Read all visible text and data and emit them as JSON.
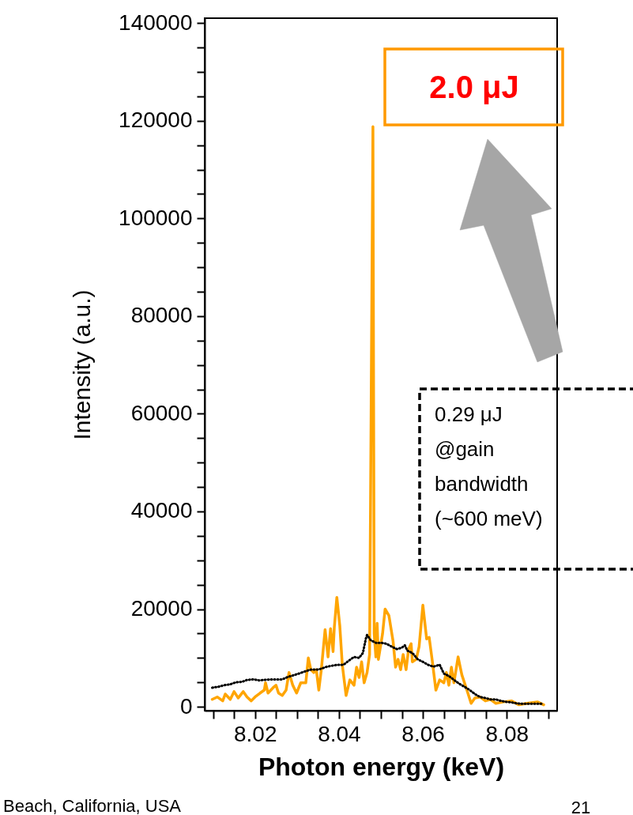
{
  "chart_data": {
    "type": "line",
    "xlabel": "Photon energy (keV)",
    "ylabel": "Intensity (a.u.)",
    "xlim": [
      8.008,
      8.092
    ],
    "ylim": [
      -800,
      141000
    ],
    "xticks": [
      {
        "value": 8.01,
        "label": null
      },
      {
        "value": 8.015,
        "label": null
      },
      8.02,
      {
        "value": 8.025,
        "label": null
      },
      {
        "value": 8.03,
        "label": null
      },
      {
        "value": 8.035,
        "label": null
      },
      8.04,
      {
        "value": 8.045,
        "label": null
      },
      {
        "value": 8.05,
        "label": null
      },
      {
        "value": 8.055,
        "label": null
      },
      8.06,
      {
        "value": 8.065,
        "label": null
      },
      {
        "value": 8.07,
        "label": null
      },
      {
        "value": 8.075,
        "label": null
      },
      8.08,
      {
        "value": 8.085,
        "label": null
      },
      {
        "value": 8.09,
        "label": null
      }
    ],
    "yticks": [
      0,
      {
        "value": 5000,
        "label": null
      },
      {
        "value": 10000,
        "label": null
      },
      {
        "value": 15000,
        "label": null
      },
      20000,
      {
        "value": 25000,
        "label": null
      },
      {
        "value": 30000,
        "label": null
      },
      {
        "value": 35000,
        "label": null
      },
      40000,
      {
        "value": 45000,
        "label": null
      },
      {
        "value": 50000,
        "label": null
      },
      {
        "value": 55000,
        "label": null
      },
      60000,
      {
        "value": 65000,
        "label": null
      },
      {
        "value": 70000,
        "label": null
      },
      {
        "value": 75000,
        "label": null
      },
      80000,
      {
        "value": 85000,
        "label": null
      },
      {
        "value": 90000,
        "label": null
      },
      {
        "value": 95000,
        "label": null
      },
      100000,
      {
        "value": 105000,
        "label": null
      },
      {
        "value": 110000,
        "label": null
      },
      {
        "value": 115000,
        "label": null
      },
      120000,
      {
        "value": 125000,
        "label": null
      },
      {
        "value": 130000,
        "label": null
      },
      {
        "value": 135000,
        "label": null
      },
      140000
    ],
    "grid": false,
    "marker": "none",
    "series": [
      {
        "color": "#000000",
        "line_style": "dotted",
        "x": [
          8.0098,
          8.0113,
          8.0126,
          8.0141,
          8.0154,
          8.0169,
          8.0181,
          8.0197,
          8.0209,
          8.0222,
          8.0237,
          8.0253,
          8.0265,
          8.0278,
          8.029,
          8.0305,
          8.0321,
          8.0333,
          8.0349,
          8.0358,
          8.0371,
          8.0383,
          8.0398,
          8.0411,
          8.0423,
          8.0436,
          8.0448,
          8.0457,
          8.0464,
          8.0467,
          8.0476,
          8.0488,
          8.0501,
          8.0513,
          8.0526,
          8.0538,
          8.055,
          8.0557,
          8.0563,
          8.0575,
          8.0588,
          8.06,
          8.0612,
          8.0625,
          8.064,
          8.065,
          8.0662,
          8.0674,
          8.0687,
          8.0699,
          8.0712,
          8.0724,
          8.0736,
          8.0749,
          8.0761,
          8.0774,
          8.0786,
          8.0798,
          8.0811,
          8.0823,
          8.0836,
          8.0854,
          8.0873,
          8.0888
        ],
        "values": [
          3900,
          4100,
          4400,
          4600,
          5000,
          5100,
          5500,
          5600,
          5400,
          5500,
          5600,
          5600,
          5600,
          6100,
          6400,
          6800,
          7300,
          7600,
          7600,
          7800,
          8200,
          8400,
          8600,
          8600,
          9400,
          10200,
          10000,
          11000,
          13900,
          14700,
          13600,
          13100,
          13100,
          12900,
          12300,
          11800,
          12100,
          12600,
          11500,
          11000,
          9700,
          9200,
          8600,
          8200,
          8600,
          6800,
          6300,
          5500,
          4700,
          4100,
          3400,
          2600,
          2000,
          1800,
          1500,
          1500,
          1200,
          1000,
          900,
          700,
          600,
          600,
          600,
          600
        ]
      },
      {
        "color": "#ffa500",
        "line_style": "solid",
        "x": [
          8.0098,
          8.011,
          8.0123,
          8.0129,
          8.0141,
          8.015,
          8.016,
          8.0172,
          8.0181,
          8.0191,
          8.02,
          8.0212,
          8.0222,
          8.0225,
          8.0231,
          8.0243,
          8.025,
          8.0256,
          8.0265,
          8.0274,
          8.0281,
          8.029,
          8.0299,
          8.0309,
          8.0321,
          8.0327,
          8.0333,
          8.034,
          8.0346,
          8.0352,
          8.0358,
          8.0367,
          8.0374,
          8.038,
          8.0386,
          8.0389,
          8.0395,
          8.0402,
          8.0408,
          8.0417,
          8.0426,
          8.0436,
          8.0442,
          8.0448,
          8.0454,
          8.046,
          8.0467,
          8.0473,
          8.0481,
          8.0484,
          8.0488,
          8.0491,
          8.0494,
          8.0504,
          8.051,
          8.0519,
          8.0529,
          8.0535,
          8.0541,
          8.0547,
          8.0553,
          8.056,
          8.0566,
          8.0572,
          8.0575,
          8.0584,
          8.0591,
          8.06,
          8.0609,
          8.0615,
          8.0622,
          8.0631,
          8.064,
          8.065,
          8.0656,
          8.0662,
          8.0668,
          8.0674,
          8.0684,
          8.0693,
          8.0705,
          8.0715,
          8.0724,
          8.0736,
          8.0749,
          8.0761,
          8.0774,
          8.0792,
          8.0811,
          8.0829,
          8.0848,
          8.0873,
          8.0888
        ],
        "values": [
          1500,
          2000,
          1200,
          2600,
          1500,
          3100,
          1800,
          3100,
          2000,
          1200,
          2000,
          2800,
          3400,
          4900,
          2800,
          3900,
          4400,
          2800,
          2300,
          3400,
          7000,
          4400,
          2800,
          4900,
          4900,
          10000,
          7600,
          7000,
          7600,
          3400,
          7600,
          15800,
          10200,
          16000,
          11300,
          16300,
          22400,
          16600,
          8600,
          2300,
          5500,
          4400,
          8100,
          6000,
          9200,
          4900,
          7000,
          10700,
          118800,
          15000,
          10200,
          17100,
          9700,
          15000,
          20000,
          18700,
          13400,
          8100,
          9700,
          7600,
          10700,
          7600,
          11800,
          12900,
          9200,
          9700,
          12300,
          20800,
          13900,
          14200,
          9700,
          3400,
          5500,
          4900,
          7000,
          4400,
          8100,
          4900,
          10200,
          6500,
          3400,
          700,
          1800,
          2000,
          1200,
          1500,
          700,
          1000,
          1200,
          400,
          700,
          1000,
          400
        ]
      }
    ],
    "annotations": [
      "2.0 μJ",
      "0.29 μJ\n@gain\nbandwidth\n(~600 meV)",
      "Beach, California, USA",
      "21"
    ]
  }
}
